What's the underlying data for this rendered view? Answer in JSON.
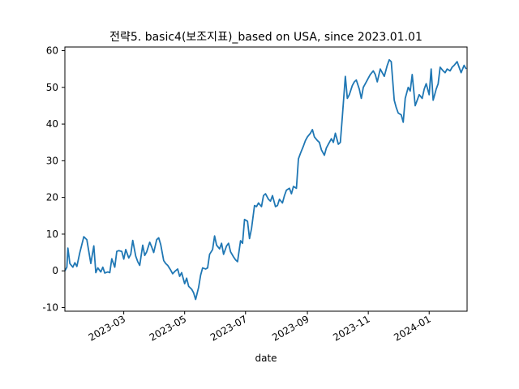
{
  "chart_data": {
    "type": "line",
    "title": "전략5. basic4(보조지표)_based on USA, since 2023.01.01",
    "xlabel": "date",
    "ylabel": "",
    "x_type": "date",
    "xlim": [
      "2023-01-01",
      "2024-02-08"
    ],
    "ylim": [
      -11,
      61
    ],
    "yticks": [
      -10,
      0,
      10,
      20,
      30,
      40,
      50,
      60
    ],
    "xticks": [
      "2023-03",
      "2023-05",
      "2023-07",
      "2023-09",
      "2023-11",
      "2024-01"
    ],
    "xtick_dates": [
      "2023-03-01",
      "2023-05-01",
      "2023-07-01",
      "2023-09-01",
      "2023-11-01",
      "2024-01-01"
    ],
    "grid": false,
    "line_color": "#1f77b4",
    "series": [
      {
        "x": [
          "2023-01-01",
          "2023-01-03",
          "2023-01-04",
          "2023-01-06",
          "2023-01-09",
          "2023-01-11",
          "2023-01-13",
          "2023-01-16",
          "2023-01-20",
          "2023-01-23",
          "2023-01-27",
          "2023-01-30",
          "2023-02-01",
          "2023-02-03",
          "2023-02-06",
          "2023-02-08",
          "2023-02-10",
          "2023-02-13",
          "2023-02-15",
          "2023-02-17",
          "2023-02-20",
          "2023-02-22",
          "2023-02-24",
          "2023-02-27",
          "2023-03-01",
          "2023-03-03",
          "2023-03-06",
          "2023-03-08",
          "2023-03-10",
          "2023-03-13",
          "2023-03-15",
          "2023-03-17",
          "2023-03-20",
          "2023-03-22",
          "2023-03-24",
          "2023-03-27",
          "2023-03-29",
          "2023-03-31",
          "2023-04-03",
          "2023-04-05",
          "2023-04-07",
          "2023-04-10",
          "2023-04-12",
          "2023-04-14",
          "2023-04-17",
          "2023-04-19",
          "2023-04-21",
          "2023-04-24",
          "2023-04-26",
          "2023-04-28",
          "2023-05-01",
          "2023-05-03",
          "2023-05-05",
          "2023-05-08",
          "2023-05-10",
          "2023-05-12",
          "2023-05-15",
          "2023-05-17",
          "2023-05-19",
          "2023-05-22",
          "2023-05-24",
          "2023-05-26",
          "2023-05-29",
          "2023-05-31",
          "2023-06-02",
          "2023-06-05",
          "2023-06-07",
          "2023-06-09",
          "2023-06-12",
          "2023-06-14",
          "2023-06-16",
          "2023-06-19",
          "2023-06-21",
          "2023-06-23",
          "2023-06-26",
          "2023-06-28",
          "2023-06-30",
          "2023-07-03",
          "2023-07-05",
          "2023-07-07",
          "2023-07-10",
          "2023-07-12",
          "2023-07-14",
          "2023-07-17",
          "2023-07-19",
          "2023-07-21",
          "2023-07-24",
          "2023-07-26",
          "2023-07-28",
          "2023-07-31",
          "2023-08-02",
          "2023-08-04",
          "2023-08-07",
          "2023-08-09",
          "2023-08-11",
          "2023-08-14",
          "2023-08-16",
          "2023-08-18",
          "2023-08-21",
          "2023-08-23",
          "2023-08-25",
          "2023-08-28",
          "2023-08-30",
          "2023-09-01",
          "2023-09-04",
          "2023-09-06",
          "2023-09-08",
          "2023-09-11",
          "2023-09-13",
          "2023-09-15",
          "2023-09-18",
          "2023-09-20",
          "2023-09-22",
          "2023-09-25",
          "2023-09-27",
          "2023-09-29",
          "2023-10-02",
          "2023-10-04",
          "2023-10-06",
          "2023-10-09",
          "2023-10-11",
          "2023-10-13",
          "2023-10-16",
          "2023-10-18",
          "2023-10-20",
          "2023-10-23",
          "2023-10-25",
          "2023-10-27",
          "2023-10-30",
          "2023-11-01",
          "2023-11-03",
          "2023-11-06",
          "2023-11-08",
          "2023-11-10",
          "2023-11-13",
          "2023-11-15",
          "2023-11-17",
          "2023-11-20",
          "2023-11-22",
          "2023-11-24",
          "2023-11-27",
          "2023-11-29",
          "2023-12-01",
          "2023-12-04",
          "2023-12-06",
          "2023-12-08",
          "2023-12-11",
          "2023-12-13",
          "2023-12-15",
          "2023-12-18",
          "2023-12-20",
          "2023-12-22",
          "2023-12-25",
          "2023-12-27",
          "2023-12-29",
          "2024-01-01",
          "2024-01-03",
          "2024-01-05",
          "2024-01-08",
          "2024-01-10",
          "2024-01-12",
          "2024-01-15",
          "2024-01-17",
          "2024-01-19",
          "2024-01-22",
          "2024-01-24",
          "2024-01-26",
          "2024-01-29",
          "2024-01-31",
          "2024-02-02",
          "2024-02-05",
          "2024-02-07"
        ],
        "y": [
          0.0,
          1.0,
          6.2,
          2.0,
          1.0,
          2.2,
          1.2,
          5.0,
          9.3,
          8.5,
          2.0,
          6.8,
          -0.5,
          0.8,
          -0.3,
          1.0,
          -0.6,
          -0.3,
          -0.5,
          3.3,
          1.0,
          5.3,
          5.5,
          5.3,
          3.2,
          5.8,
          3.5,
          4.5,
          8.3,
          4.0,
          2.5,
          1.5,
          7.0,
          4.2,
          5.2,
          7.8,
          6.5,
          5.0,
          8.5,
          9.0,
          7.2,
          2.8,
          2.0,
          1.5,
          0.2,
          -0.8,
          -0.2,
          0.5,
          -1.5,
          -0.5,
          -3.5,
          -2.0,
          -4.2,
          -5.0,
          -6.0,
          -7.8,
          -4.5,
          -1.2,
          0.8,
          0.5,
          0.8,
          4.5,
          5.8,
          9.5,
          7.0,
          6.0,
          7.5,
          4.5,
          6.8,
          7.5,
          5.2,
          3.8,
          3.0,
          2.5,
          8.2,
          7.5,
          14.0,
          13.5,
          8.8,
          11.5,
          17.8,
          17.5,
          18.5,
          17.5,
          20.5,
          21.0,
          19.5,
          19.0,
          20.5,
          17.5,
          17.8,
          19.5,
          18.5,
          20.5,
          22.0,
          22.5,
          21.0,
          23.0,
          22.5,
          30.5,
          32.0,
          34.0,
          35.5,
          36.5,
          37.5,
          38.5,
          36.5,
          35.5,
          35.0,
          33.0,
          31.5,
          33.5,
          34.5,
          36.0,
          35.0,
          37.5,
          34.5,
          35.0,
          42.0,
          53.0,
          47.0,
          48.0,
          50.5,
          51.5,
          52.0,
          49.5,
          47.0,
          50.0,
          51.5,
          52.5,
          53.5,
          54.5,
          53.5,
          51.5,
          55.0,
          54.0,
          53.0,
          56.0,
          57.5,
          57.0,
          46.5,
          44.5,
          43.0,
          42.5,
          40.5,
          47.0,
          50.0,
          49.0,
          53.5,
          45.0,
          46.5,
          48.0,
          47.0,
          49.5,
          51.0,
          48.0,
          55.0,
          46.5,
          49.5,
          51.0,
          55.5,
          54.5,
          54.0,
          55.0,
          54.5,
          55.5,
          56.0,
          57.0,
          55.5,
          54.0,
          56.0,
          55.0
        ]
      }
    ]
  }
}
